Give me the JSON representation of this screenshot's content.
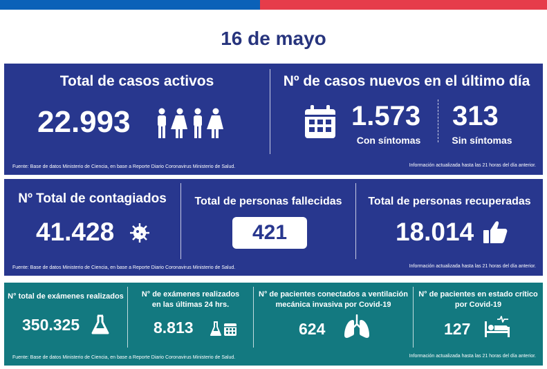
{
  "date": "16 de mayo",
  "row1": {
    "active_title": "Total de casos activos",
    "active_value": "22.993",
    "new_title": "Nº de casos nuevos en el último día",
    "with_symptoms_value": "1.573",
    "with_symptoms_label": "Con síntomas",
    "without_symptoms_value": "313",
    "without_symptoms_label": "Sin síntomas",
    "source": "Fuente: Base de datos Ministerio de Ciencia, en base a Reporte Diario Coronavirus Ministerio de Salud.",
    "updated": "Información actualizada hasta las 21 horas  del día anterior."
  },
  "row2": {
    "infected_title": "Nº Total de contagiados",
    "infected_value": "41.428",
    "deceased_title": "Total de personas fallecidas",
    "deceased_value": "421",
    "recovered_title": "Total de personas recuperadas",
    "recovered_value": "18.014",
    "source": "Fuente: Base de datos Ministerio de Ciencia, en base a Reporte Diario Coronavirus Ministerio de Salud.",
    "updated": "Información actualizada hasta las 21 horas  del día anterior."
  },
  "row3": {
    "exams_total_title": "N° total de exámenes realizados",
    "exams_total_value": "350.325",
    "exams_24h_title_1": "N° de exámenes realizados",
    "exams_24h_title_2": "en las últimas 24 hrs.",
    "exams_24h_value": "8.813",
    "ventilation_title_1": "N° de pacientes conectados a ventilación",
    "ventilation_title_2": "mecánica invasiva por Covid-19",
    "ventilation_value": "624",
    "critical_title_1": "N° de pacientes en estado crítico",
    "critical_title_2": "por Covid-19",
    "critical_value": "127",
    "source": "Fuente: Base de datos Ministerio de Ciencia, en base a Reporte Diario Coronavirus Ministerio de Salud.",
    "updated": "Información actualizada hasta las 21 horas  del día anterior."
  },
  "colors": {
    "blue_bar": "#0b61b8",
    "red_bar": "#e63c4a",
    "panel_blue": "#28378e",
    "panel_teal": "#137980",
    "date_text": "#27347d"
  },
  "icons": [
    "people-icon",
    "calendar-icon",
    "virus-icon",
    "thumbs-up-icon",
    "flask-icon",
    "flask-calendar-icon",
    "lungs-icon",
    "hospital-bed-icon"
  ]
}
